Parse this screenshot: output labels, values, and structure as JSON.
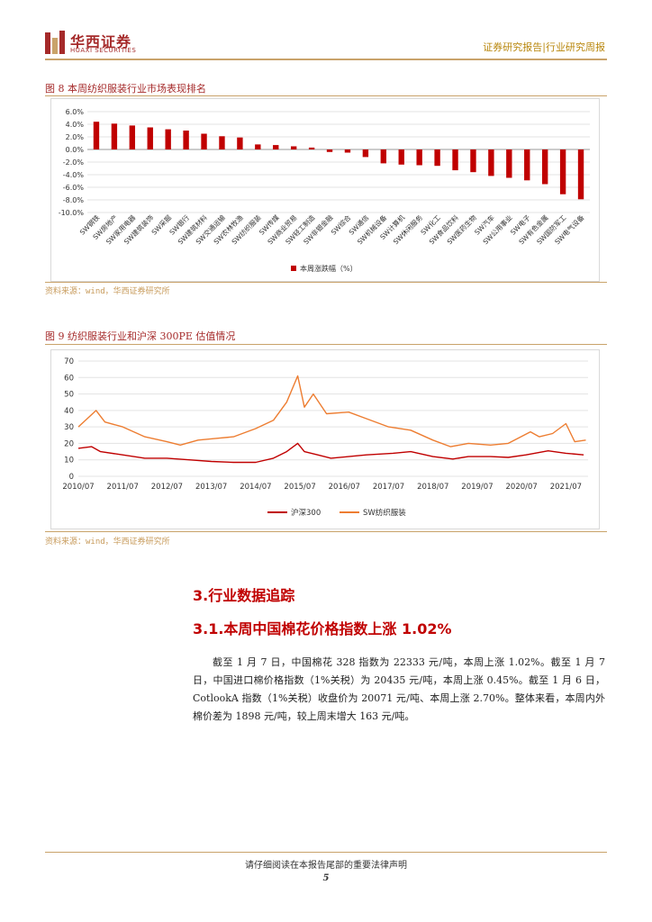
{
  "header": {
    "brand_cn": "华西证券",
    "brand_en": "HUAXI SECURITIES",
    "report_type": "证券研究报告|行业研究周报"
  },
  "colors": {
    "accent": "#c00000",
    "gold": "#c9a36a",
    "series_red": "#c00000",
    "series_orange": "#ed7d31"
  },
  "figure8": {
    "title": "图 8  本周纺织服装行业市场表现排名",
    "source": "资料来源：wind，华西证券研究所",
    "chart_data": {
      "type": "bar",
      "categories": [
        "SW钢铁",
        "SW房地产",
        "SW家用电器",
        "SW建筑装饰",
        "SW采掘",
        "SW银行",
        "SW建筑材料",
        "SW交通运输",
        "SW农林牧渔",
        "SW纺织服装",
        "SW传媒",
        "SW商业贸易",
        "SW轻工制造",
        "SW非银金融",
        "SW综合",
        "SW通信",
        "SW机械设备",
        "SW计算机",
        "SW休闲服务",
        "SW化工",
        "SW食品饮料",
        "SW医药生物",
        "SW汽车",
        "SW公用事业",
        "SW电子",
        "SW有色金属",
        "SW国防军工",
        "SW电气设备"
      ],
      "series": [
        {
          "name": "本周涨跌幅（%）",
          "values": [
            4.4,
            4.1,
            3.8,
            3.5,
            3.2,
            3.0,
            2.5,
            2.1,
            1.9,
            0.8,
            0.7,
            0.5,
            0.3,
            -0.4,
            -0.5,
            -1.2,
            -2.2,
            -2.4,
            -2.5,
            -2.6,
            -3.3,
            -3.6,
            -4.2,
            -4.5,
            -4.9,
            -5.5,
            -7.1,
            -7.9
          ]
        }
      ],
      "ylim": [
        -10,
        6
      ],
      "yticks": [
        "6.0%",
        "4.0%",
        "2.0%",
        "0.0%",
        "-2.0%",
        "-4.0%",
        "-6.0%",
        "-8.0%",
        "-10.0%"
      ],
      "legend_position": "bottom",
      "grid": true
    }
  },
  "figure9": {
    "title": "图 9  纺织服装行业和沪深 300PE 估值情况",
    "source": "资料来源：wind，华西证券研究所",
    "chart_data": {
      "type": "line",
      "x": [
        "2010/07",
        "2011/07",
        "2012/07",
        "2013/07",
        "2014/07",
        "2015/07",
        "2016/07",
        "2017/07",
        "2018/07",
        "2019/07",
        "2020/07",
        "2021/07"
      ],
      "xticks": [
        "2010/07",
        "2011/07",
        "2012/07",
        "2013/07",
        "2014/07",
        "2015/07",
        "2016/07",
        "2017/07",
        "2018/07",
        "2019/07",
        "2020/07",
        "2021/07"
      ],
      "ylim": [
        0,
        70
      ],
      "yticks": [
        "70",
        "60",
        "50",
        "40",
        "30",
        "20",
        "10",
        "0"
      ],
      "legend_position": "bottom",
      "grid": true,
      "series": [
        {
          "name": "沪深300",
          "points": [
            [
              2010.5,
              17
            ],
            [
              2010.8,
              18
            ],
            [
              2011.0,
              15
            ],
            [
              2011.5,
              13
            ],
            [
              2012.0,
              11
            ],
            [
              2012.5,
              11
            ],
            [
              2013.0,
              10
            ],
            [
              2013.5,
              9
            ],
            [
              2014.0,
              8.5
            ],
            [
              2014.5,
              8.5
            ],
            [
              2014.9,
              11
            ],
            [
              2015.2,
              15
            ],
            [
              2015.45,
              20
            ],
            [
              2015.6,
              15
            ],
            [
              2015.9,
              13
            ],
            [
              2016.2,
              11
            ],
            [
              2016.6,
              12
            ],
            [
              2017.0,
              13
            ],
            [
              2017.6,
              14
            ],
            [
              2018.0,
              15
            ],
            [
              2018.5,
              12
            ],
            [
              2018.95,
              10.5
            ],
            [
              2019.3,
              12
            ],
            [
              2019.8,
              12
            ],
            [
              2020.2,
              11.5
            ],
            [
              2020.6,
              13
            ],
            [
              2021.1,
              15.5
            ],
            [
              2021.5,
              14
            ],
            [
              2021.9,
              13
            ]
          ]
        },
        {
          "name": "SW纺织服装",
          "points": [
            [
              2010.5,
              30
            ],
            [
              2010.9,
              40
            ],
            [
              2011.1,
              33
            ],
            [
              2011.5,
              30
            ],
            [
              2012.0,
              24
            ],
            [
              2012.5,
              21
            ],
            [
              2012.8,
              19
            ],
            [
              2013.2,
              22
            ],
            [
              2013.6,
              23
            ],
            [
              2014.0,
              24
            ],
            [
              2014.5,
              29
            ],
            [
              2014.9,
              34
            ],
            [
              2015.2,
              45
            ],
            [
              2015.45,
              61
            ],
            [
              2015.6,
              42
            ],
            [
              2015.8,
              50
            ],
            [
              2016.1,
              38
            ],
            [
              2016.6,
              39
            ],
            [
              2017.0,
              35
            ],
            [
              2017.5,
              30
            ],
            [
              2018.0,
              28
            ],
            [
              2018.5,
              22
            ],
            [
              2018.9,
              18
            ],
            [
              2019.3,
              20
            ],
            [
              2019.8,
              19
            ],
            [
              2020.2,
              20
            ],
            [
              2020.7,
              27
            ],
            [
              2020.9,
              24
            ],
            [
              2021.2,
              26
            ],
            [
              2021.5,
              32
            ],
            [
              2021.7,
              21
            ],
            [
              2021.95,
              22
            ]
          ]
        }
      ]
    }
  },
  "section": {
    "heading": "3.行业数据追踪",
    "subheading": "3.1.本周中国棉花价格指数上涨 1.02%",
    "paragraph": "截至 1 月 7 日，中国棉花 328 指数为 22333 元/吨，本周上涨 1.02%。截至 1 月 7 日，中国进口棉价格指数（1%关税）为 20435 元/吨，本周上涨 0.45%。截至 1 月 6 日，CotlookA 指数（1%关税）收盘价为 20071 元/吨、本周上涨 2.70%。整体来看，本周内外棉价差为 1898 元/吨，较上周末增大 163 元/吨。"
  },
  "footer": {
    "note": "请仔细阅读在本报告尾部的重要法律声明",
    "page_number": "5"
  }
}
